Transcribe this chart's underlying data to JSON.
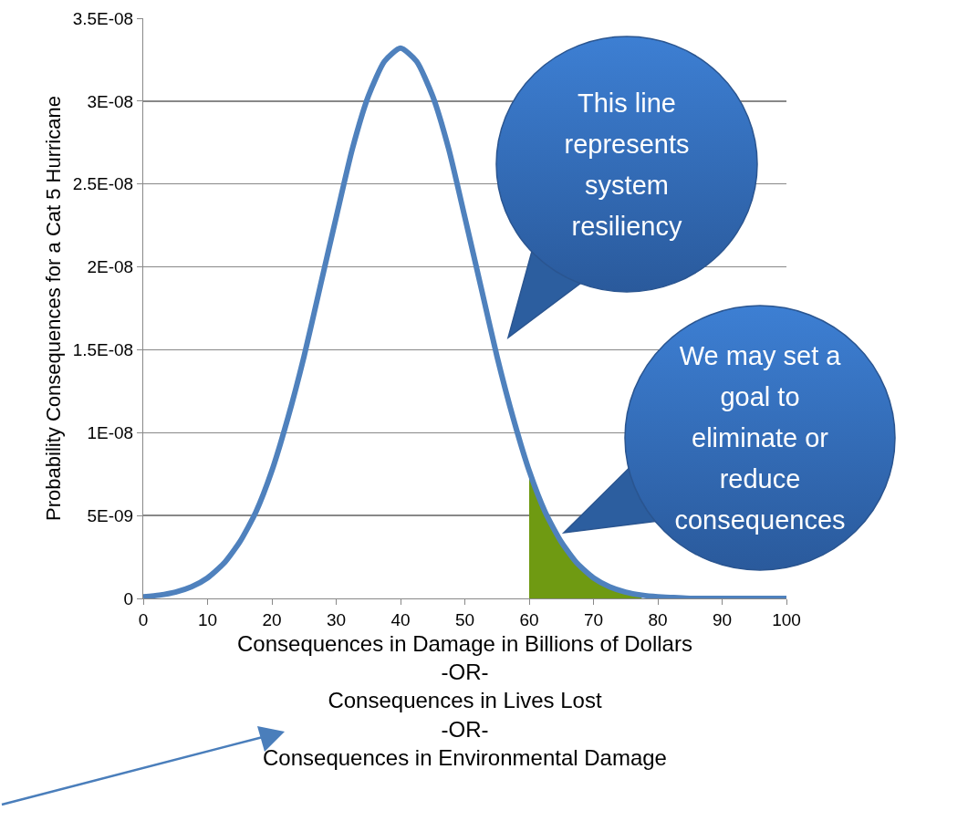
{
  "chart_data": {
    "type": "line",
    "xlabel": "Consequences in Damage in Billions of Dollars\n-OR-\nConsequences in Lives Lost\n-OR-\nConsequences in Environmental Damage",
    "ylabel": "Probability Consequences for a Cat 5 Hurricane",
    "annotations": [
      "This line\nrepresents\nsystem\nresiliency",
      "We may set a\ngoal to\neliminate or\nreduce\nconsequences"
    ],
    "series": [
      {
        "type": "area",
        "color": "#6f9a12",
        "x": [
          60,
          62.5,
          65,
          67.5,
          70,
          72.5,
          75,
          77.5
        ],
        "values": [
          7.7e-09,
          5.2e-09,
          3.4e-09,
          2.1e-09,
          1.24e-09,
          7e-10,
          3.8e-10,
          2e-10
        ]
      },
      {
        "type": "line",
        "color": "#4f81bd",
        "x": [
          0,
          2.5,
          5,
          7.5,
          10,
          12.5,
          15,
          17.5,
          20,
          22.5,
          25,
          27.5,
          30,
          32.5,
          35,
          37.5,
          40,
          42.5,
          45,
          47.5,
          50,
          52.5,
          55,
          57.5,
          60,
          62.5,
          65,
          67.5,
          70,
          72.5,
          75,
          77.5,
          80,
          82.5,
          85,
          87.5,
          90,
          92.5,
          95,
          97.5,
          100
        ],
        "values": [
          1e-10,
          2e-10,
          3.8e-10,
          7e-10,
          1.24e-09,
          2.1e-09,
          3.4e-09,
          5.2e-09,
          7.7e-09,
          1.09e-08,
          1.46e-08,
          1.88e-08,
          2.3e-08,
          2.71e-08,
          3.03e-08,
          3.24e-08,
          3.32e-08,
          3.24e-08,
          3.03e-08,
          2.71e-08,
          2.3e-08,
          1.88e-08,
          1.46e-08,
          1.09e-08,
          7.7e-09,
          5.2e-09,
          3.4e-09,
          2.1e-09,
          1.24e-09,
          7e-10,
          3.8e-10,
          2e-10,
          1e-10,
          5e-11,
          0,
          0,
          0,
          0,
          0,
          0,
          0
        ]
      }
    ],
    "xlim": [
      0,
      100
    ],
    "xticks": [
      0,
      10,
      20,
      30,
      40,
      50,
      60,
      70,
      80,
      90,
      100
    ],
    "ylim": [
      0,
      3.5e-08
    ],
    "yticks": [
      {
        "value": 0,
        "label": "0"
      },
      {
        "value": 5e-09,
        "label": "5E-09"
      },
      {
        "value": 1e-08,
        "label": "1E-08"
      },
      {
        "value": 1.5e-08,
        "label": "1.5E-08"
      },
      {
        "value": 2e-08,
        "label": "2E-08"
      },
      {
        "value": 2.5e-08,
        "label": "2.5E-08"
      },
      {
        "value": 3e-08,
        "label": "3E-08"
      },
      {
        "value": 3.5e-08,
        "label": "3.5E-08"
      }
    ],
    "grid": "y",
    "legend": false
  }
}
